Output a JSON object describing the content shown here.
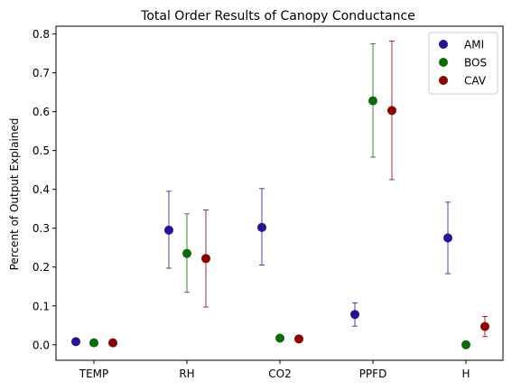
{
  "chart_data": {
    "type": "scatter",
    "title": "Total Order Results of Canopy Conductance",
    "xlabel": "",
    "ylabel": "Percent of Output Explained",
    "categories": [
      "TEMP",
      "RH",
      "CO2",
      "PPFD",
      "H"
    ],
    "ylim": [
      -0.04,
      0.82
    ],
    "yticks": [
      0.0,
      0.1,
      0.2,
      0.3,
      0.4,
      0.5,
      0.6,
      0.7,
      0.8
    ],
    "ytick_labels": [
      "0.0",
      "0.1",
      "0.2",
      "0.3",
      "0.4",
      "0.5",
      "0.6",
      "0.7",
      "0.8"
    ],
    "grid": false,
    "legend_position": "top-right",
    "series": [
      {
        "name": "AMI",
        "color": "#2b1196",
        "values": [
          0.008,
          0.295,
          0.302,
          0.078,
          0.275
        ],
        "err_low": [
          0.008,
          0.197,
          0.205,
          0.048,
          0.183
        ],
        "err_high": [
          0.008,
          0.395,
          0.402,
          0.108,
          0.367
        ]
      },
      {
        "name": "BOS",
        "color": "#0a6b00",
        "values": [
          0.005,
          0.235,
          0.017,
          0.628,
          0.0
        ],
        "err_low": [
          0.005,
          0.135,
          0.017,
          0.483,
          0.0
        ],
        "err_high": [
          0.005,
          0.337,
          0.017,
          0.775,
          0.0
        ]
      },
      {
        "name": "CAV",
        "color": "#8b0000",
        "values": [
          0.005,
          0.222,
          0.015,
          0.603,
          0.047
        ],
        "err_low": [
          0.005,
          0.097,
          0.015,
          0.425,
          0.021
        ],
        "err_high": [
          0.005,
          0.347,
          0.015,
          0.782,
          0.073
        ]
      }
    ]
  }
}
